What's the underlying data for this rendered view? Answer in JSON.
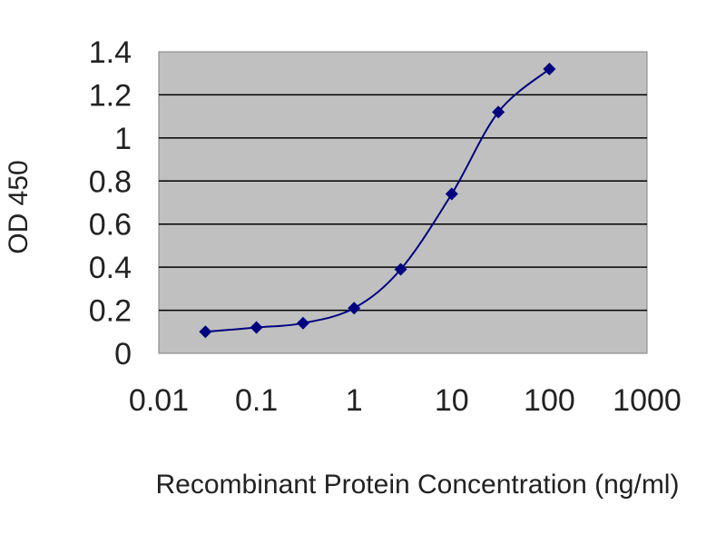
{
  "chart_data": {
    "type": "line",
    "title": "",
    "xlabel": "Recombinant Protein Concentration (ng/ml)",
    "ylabel": "OD 450",
    "xscale": "log",
    "xlim": [
      0.01,
      1000
    ],
    "ylim": [
      0,
      1.4
    ],
    "x_ticks": [
      "0.01",
      "0.1",
      "1",
      "10",
      "100",
      "1000"
    ],
    "y_ticks": [
      "0",
      "0.2",
      "0.4",
      "0.6",
      "0.8",
      "1",
      "1.2",
      "1.4"
    ],
    "grid": "horizontal",
    "plot_background": "#c0c0c0",
    "series": [
      {
        "color": "#000080",
        "marker": "diamond",
        "x": [
          0.03,
          0.1,
          0.3,
          1,
          3,
          10,
          30,
          100
        ],
        "y": [
          0.1,
          0.12,
          0.14,
          0.21,
          0.39,
          0.74,
          1.12,
          1.32
        ]
      }
    ]
  }
}
